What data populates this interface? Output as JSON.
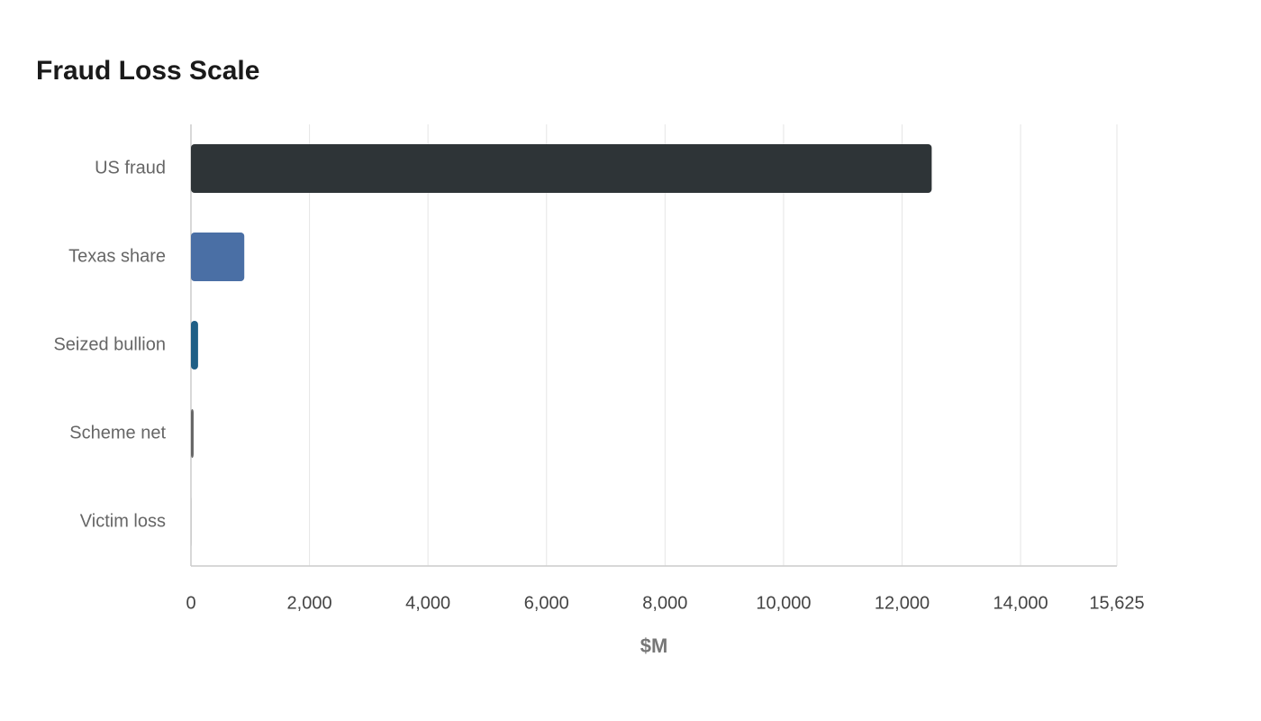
{
  "chart_data": {
    "type": "hbar",
    "title": "Fraud Loss Scale",
    "xlabel": "$M",
    "categories": [
      "US fraud",
      "Texas share",
      "Seized bullion",
      "Scheme net",
      "Victim loss"
    ],
    "values": [
      12500,
      900,
      120,
      45,
      5
    ],
    "colors": [
      "#2e3437",
      "#4a6fa5",
      "#1f5f86",
      "#666666",
      "#aaaaaa"
    ],
    "xlim": [
      0,
      15625
    ],
    "xticks": [
      0,
      {
        "value": 2000,
        "label": "2,000"
      },
      {
        "value": 4000,
        "label": "4,000"
      },
      {
        "value": 6000,
        "label": "6,000"
      },
      {
        "value": 8000,
        "label": "8,000"
      },
      {
        "value": 10000,
        "label": "10,000"
      },
      {
        "value": 12000,
        "label": "12,000"
      },
      {
        "value": 14000,
        "label": "14,000"
      },
      {
        "value": 15625,
        "label": "15,625"
      }
    ],
    "grid": true
  }
}
